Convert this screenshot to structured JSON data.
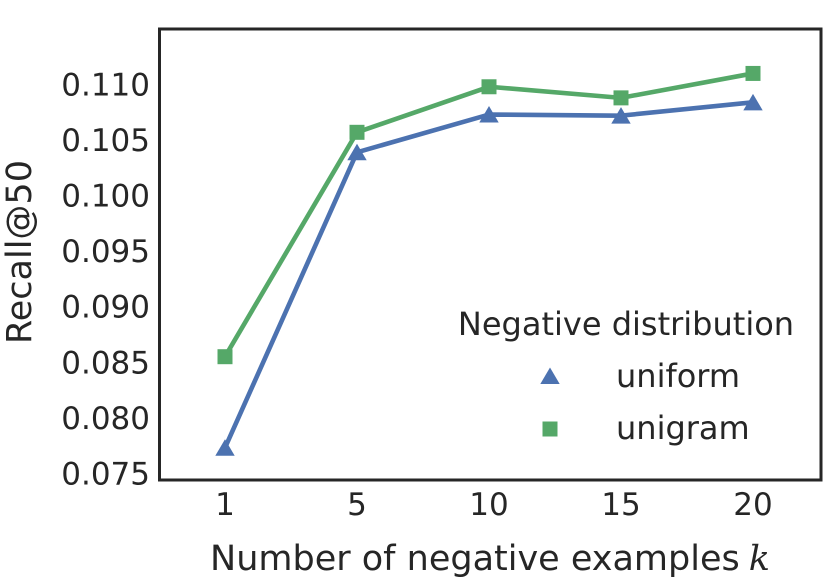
{
  "figure": {
    "background": "#ffffff",
    "text_color": "#262626",
    "spine_color": "#262626"
  },
  "chart_data": {
    "type": "line",
    "xlabel_prefix": "Number of negative examples",
    "xlabel_var": "k",
    "ylabel": "Recall@50",
    "x_tick_labels": [
      "1",
      "5",
      "10",
      "15",
      "20"
    ],
    "y_tick_labels": [
      "0.075",
      "0.080",
      "0.085",
      "0.090",
      "0.095",
      "0.100",
      "0.105",
      "0.110"
    ],
    "ylim": [
      0.0744,
      0.115
    ],
    "grid": false,
    "legend": {
      "title": "Negative distribution",
      "position": "lower-right-inside",
      "entries": [
        {
          "label": "uniform"
        },
        {
          "label": "unigram"
        }
      ]
    },
    "series": [
      {
        "name": "uniform",
        "marker": "triangle-up",
        "color": "#4C72B0",
        "values": [
          0.0773,
          0.1039,
          0.1073,
          0.1072,
          0.1084
        ]
      },
      {
        "name": "unigram",
        "marker": "square",
        "color": "#55A868",
        "values": [
          0.0855,
          0.1057,
          0.1098,
          0.1088,
          0.111
        ]
      }
    ]
  }
}
